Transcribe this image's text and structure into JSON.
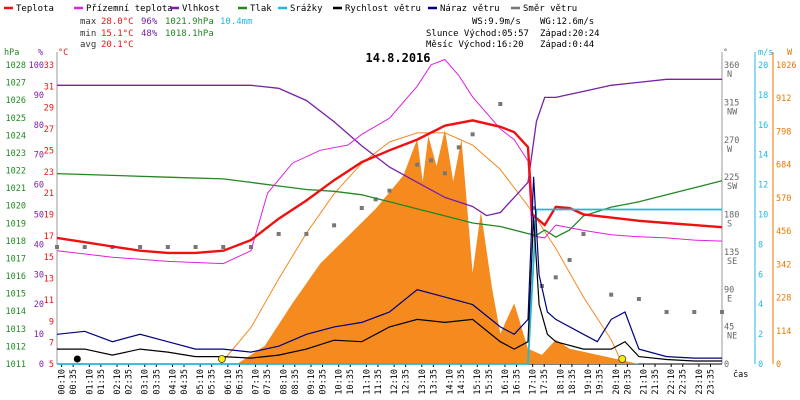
{
  "chart_data": {
    "type": "line",
    "title": "14.8.2016",
    "legend": [
      {
        "label": "Teplota",
        "color": "#ee1111"
      },
      {
        "label": "Přízemní teplota",
        "color": "#dd22dd"
      },
      {
        "label": "Vlhkost",
        "color": "#7a1fa8"
      },
      {
        "label": "Tlak",
        "color": "#228822"
      },
      {
        "label": "Srážky",
        "color": "#22b8dd"
      },
      {
        "label": "Rychlost větru",
        "color": "#000000"
      },
      {
        "label": "Náraz větru",
        "color": "#000080"
      },
      {
        "label": "Směr větru",
        "color": "#777777"
      }
    ],
    "stats": {
      "max": {
        "label": "max",
        "temp": "28.0°C",
        "hum": "96%",
        "press": "1021.9hPa",
        "rain": "10.4mm"
      },
      "min": {
        "label": "min",
        "temp": "15.1°C",
        "hum": "48%",
        "press": "1018.1hPa"
      },
      "avg": {
        "label": "avg",
        "temp": "20.1°C"
      }
    },
    "info": {
      "ws": "WS:9.9m/s",
      "wg": "WG:12.6m/s",
      "sun": "Slunce Východ:05:57",
      "sun_set": "Západ:20:24",
      "moon": "Měsíc Východ:16:20",
      "moon_set": "Západ:0:44"
    },
    "axes": {
      "hpa": {
        "unit": "hPa",
        "ticks": [
          "1028",
          "1027",
          "1026",
          "1025",
          "1024",
          "1023",
          "1022",
          "1021",
          "1020",
          "1019",
          "1018",
          "1017",
          "1016",
          "1015",
          "1014",
          "1013",
          "1012",
          "1011"
        ]
      },
      "pct": {
        "unit": "%",
        "ticks": [
          "100",
          "90",
          "80",
          "70",
          "60",
          "50",
          "40",
          "30",
          "20",
          "10",
          "0"
        ]
      },
      "degc": {
        "unit": "°C",
        "ticks": [
          "33",
          "31",
          "29",
          "27",
          "25",
          "23",
          "21",
          "19",
          "17",
          "15",
          "13",
          "11",
          "9",
          "7",
          "5"
        ]
      },
      "deg": {
        "unit": "°",
        "ticks": [
          "360 N",
          "315 NW",
          "270 W",
          "225 SW",
          "180 S",
          "135 SE",
          "90 E",
          "45 NE",
          "0"
        ]
      },
      "ms": {
        "unit": "m/s",
        "ticks": [
          "20",
          "18",
          "16",
          "14",
          "12",
          "10",
          "8",
          "6",
          "4",
          "2",
          "0"
        ]
      },
      "wm2": {
        "unit": "W",
        "ticks": [
          "1026",
          "912",
          "798",
          "684",
          "570",
          "456",
          "342",
          "228",
          "114",
          "0"
        ]
      },
      "xlabel": "čas",
      "xticks": [
        "00:10",
        "00:35",
        "01:10",
        "01:35",
        "02:10",
        "02:35",
        "03:10",
        "03:35",
        "04:10",
        "04:35",
        "05:10",
        "05:35",
        "06:10",
        "06:35",
        "07:10",
        "07:35",
        "08:10",
        "08:35",
        "09:10",
        "09:35",
        "10:10",
        "10:35",
        "11:10",
        "11:35",
        "12:10",
        "12:35",
        "13:10",
        "13:35",
        "14:10",
        "14:35",
        "15:10",
        "15:35",
        "16:10",
        "16:35",
        "17:10",
        "17:35",
        "18:10",
        "18:35",
        "19:10",
        "19:35",
        "20:10",
        "20:35",
        "21:10",
        "21:35",
        "22:10",
        "22:35",
        "23:10",
        "23:35"
      ]
    },
    "series": {
      "temperature_c": [
        [
          0,
          16.8
        ],
        [
          1,
          16.4
        ],
        [
          2,
          16.0
        ],
        [
          3,
          15.6
        ],
        [
          4,
          15.4
        ],
        [
          5,
          15.4
        ],
        [
          6,
          15.6
        ],
        [
          7,
          16.6
        ],
        [
          7.5,
          17.6
        ],
        [
          8,
          18.6
        ],
        [
          9,
          20.3
        ],
        [
          10,
          22.2
        ],
        [
          11,
          23.9
        ],
        [
          12,
          25.0
        ],
        [
          13,
          26.0
        ],
        [
          14,
          27.3
        ],
        [
          15,
          27.8
        ],
        [
          16,
          27.2
        ],
        [
          16.5,
          26.7
        ],
        [
          17,
          25.3
        ],
        [
          17.15,
          19.0
        ],
        [
          17.6,
          18.0
        ],
        [
          18,
          19.7
        ],
        [
          18.5,
          19.6
        ],
        [
          19,
          19.0
        ],
        [
          20,
          18.7
        ],
        [
          21,
          18.4
        ],
        [
          22,
          18.2
        ],
        [
          23,
          18.0
        ],
        [
          24,
          17.8
        ]
      ],
      "ground_temp_c": [
        [
          0,
          15.6
        ],
        [
          2,
          15.0
        ],
        [
          4,
          14.6
        ],
        [
          6,
          14.4
        ],
        [
          7,
          15.6
        ],
        [
          7.6,
          21.0
        ],
        [
          8.5,
          23.8
        ],
        [
          9.5,
          25.0
        ],
        [
          10.5,
          25.5
        ],
        [
          11,
          26.5
        ],
        [
          12,
          28.0
        ],
        [
          13,
          31.0
        ],
        [
          13.5,
          33.0
        ],
        [
          14,
          33.5
        ],
        [
          14.5,
          32.0
        ],
        [
          15,
          30.0
        ],
        [
          16,
          27.0
        ],
        [
          16.5,
          26.0
        ],
        [
          17,
          24.0
        ],
        [
          17.15,
          17.0
        ],
        [
          17.6,
          16.8
        ],
        [
          18,
          18.0
        ],
        [
          19,
          17.5
        ],
        [
          20,
          17.1
        ],
        [
          21,
          16.9
        ],
        [
          22,
          16.8
        ],
        [
          23,
          16.6
        ],
        [
          24,
          16.5
        ]
      ],
      "humidity_pct": [
        [
          0,
          92
        ],
        [
          4,
          92
        ],
        [
          6,
          92
        ],
        [
          7,
          92
        ],
        [
          8,
          91
        ],
        [
          9,
          87
        ],
        [
          10,
          80
        ],
        [
          11,
          72
        ],
        [
          12,
          65
        ],
        [
          13,
          60
        ],
        [
          14,
          55
        ],
        [
          15,
          52
        ],
        [
          15.5,
          49
        ],
        [
          16,
          50
        ],
        [
          16.5,
          55
        ],
        [
          17,
          60
        ],
        [
          17.3,
          80
        ],
        [
          17.6,
          88
        ],
        [
          18,
          88
        ],
        [
          19,
          90
        ],
        [
          20,
          92
        ],
        [
          22,
          94
        ],
        [
          24,
          94
        ]
      ],
      "pressure_hpa": [
        [
          0,
          1021.8
        ],
        [
          2,
          1021.7
        ],
        [
          4,
          1021.6
        ],
        [
          6,
          1021.5
        ],
        [
          7,
          1021.3
        ],
        [
          8,
          1021.1
        ],
        [
          9,
          1020.9
        ],
        [
          10,
          1020.8
        ],
        [
          11,
          1020.6
        ],
        [
          12,
          1020.2
        ],
        [
          13,
          1019.8
        ],
        [
          14,
          1019.4
        ],
        [
          15,
          1019.0
        ],
        [
          16,
          1018.8
        ],
        [
          17,
          1018.4
        ],
        [
          17.3,
          1018.3
        ],
        [
          17.6,
          1018.6
        ],
        [
          18,
          1018.2
        ],
        [
          18.5,
          1018.6
        ],
        [
          19,
          1019.4
        ],
        [
          20,
          1019.9
        ],
        [
          21,
          1020.2
        ],
        [
          22,
          1020.6
        ],
        [
          23,
          1021.0
        ],
        [
          24,
          1021.4
        ]
      ],
      "rain_mm": [
        [
          0,
          0
        ],
        [
          17.0,
          0
        ],
        [
          17.3,
          10.4
        ],
        [
          24,
          10.4
        ]
      ],
      "wind_ms": [
        [
          0,
          1.0
        ],
        [
          1,
          1.0
        ],
        [
          2,
          0.6
        ],
        [
          3,
          1.0
        ],
        [
          4,
          0.8
        ],
        [
          5,
          0.5
        ],
        [
          6,
          0.5
        ],
        [
          7,
          0.4
        ],
        [
          8,
          0.6
        ],
        [
          9,
          1.0
        ],
        [
          10,
          1.6
        ],
        [
          11,
          1.5
        ],
        [
          12,
          2.5
        ],
        [
          13,
          3.0
        ],
        [
          14,
          2.8
        ],
        [
          15,
          3.0
        ],
        [
          16,
          1.5
        ],
        [
          16.5,
          1.0
        ],
        [
          17,
          1.5
        ],
        [
          17.2,
          9.9
        ],
        [
          17.4,
          4.0
        ],
        [
          17.7,
          2.0
        ],
        [
          18,
          1.5
        ],
        [
          19,
          1.0
        ],
        [
          20,
          1.0
        ],
        [
          20.5,
          1.5
        ],
        [
          21,
          0.5
        ],
        [
          22,
          0.3
        ],
        [
          23,
          0.2
        ],
        [
          24,
          0.2
        ]
      ],
      "gust_ms": [
        [
          0,
          2.0
        ],
        [
          1,
          2.2
        ],
        [
          2,
          1.5
        ],
        [
          3,
          2.0
        ],
        [
          4,
          1.5
        ],
        [
          5,
          1.0
        ],
        [
          6,
          1.0
        ],
        [
          7,
          0.8
        ],
        [
          8,
          1.2
        ],
        [
          9,
          2.0
        ],
        [
          10,
          2.5
        ],
        [
          11,
          2.8
        ],
        [
          12,
          3.5
        ],
        [
          13,
          5.0
        ],
        [
          14,
          4.5
        ],
        [
          15,
          4.0
        ],
        [
          16,
          2.5
        ],
        [
          16.5,
          2.0
        ],
        [
          17,
          3.0
        ],
        [
          17.2,
          12.6
        ],
        [
          17.4,
          6.0
        ],
        [
          17.7,
          3.5
        ],
        [
          18,
          3.0
        ],
        [
          19,
          2.0
        ],
        [
          19.5,
          1.5
        ],
        [
          20,
          3.0
        ],
        [
          20.5,
          3.5
        ],
        [
          21,
          1.0
        ],
        [
          22,
          0.5
        ],
        [
          23,
          0.4
        ],
        [
          24,
          0.4
        ]
      ],
      "wind_dir_deg": [
        [
          0,
          135
        ],
        [
          1,
          135
        ],
        [
          2,
          135
        ],
        [
          3,
          135
        ],
        [
          4,
          135
        ],
        [
          5,
          135
        ],
        [
          6,
          135
        ],
        [
          7,
          135
        ],
        [
          8,
          150
        ],
        [
          9,
          150
        ],
        [
          10,
          160
        ],
        [
          11,
          180
        ],
        [
          11.5,
          190
        ],
        [
          12,
          200
        ],
        [
          13,
          230
        ],
        [
          13.5,
          235
        ],
        [
          14,
          220
        ],
        [
          14.5,
          250
        ],
        [
          15,
          265
        ],
        [
          16,
          300
        ],
        [
          17.2,
          180
        ],
        [
          17.5,
          90
        ],
        [
          18,
          100
        ],
        [
          18.5,
          120
        ],
        [
          19,
          150
        ],
        [
          20,
          80
        ],
        [
          21,
          75
        ],
        [
          22,
          60
        ],
        [
          23,
          60
        ],
        [
          24,
          60
        ]
      ],
      "solar_wm2": [
        [
          0,
          0
        ],
        [
          6.5,
          0
        ],
        [
          7.5,
          60
        ],
        [
          8.5,
          200
        ],
        [
          9.5,
          330
        ],
        [
          10.5,
          420
        ],
        [
          11.5,
          510
        ],
        [
          12.5,
          620
        ],
        [
          13,
          740
        ],
        [
          13.2,
          600
        ],
        [
          13.4,
          750
        ],
        [
          13.7,
          650
        ],
        [
          14,
          770
        ],
        [
          14.3,
          600
        ],
        [
          14.6,
          740
        ],
        [
          15,
          300
        ],
        [
          15.3,
          500
        ],
        [
          15.7,
          250
        ],
        [
          16,
          100
        ],
        [
          16.5,
          200
        ],
        [
          17,
          50
        ],
        [
          17.5,
          30
        ],
        [
          18,
          80
        ],
        [
          18.5,
          50
        ],
        [
          19,
          40
        ],
        [
          20,
          20
        ],
        [
          21,
          0
        ],
        [
          24,
          0
        ]
      ],
      "clear_sky_wm2": [
        [
          5.9,
          0
        ],
        [
          7,
          120
        ],
        [
          8,
          280
        ],
        [
          9,
          430
        ],
        [
          10,
          560
        ],
        [
          11,
          660
        ],
        [
          12,
          730
        ],
        [
          13,
          760
        ],
        [
          14,
          760
        ],
        [
          15,
          720
        ],
        [
          16,
          640
        ],
        [
          17,
          520
        ],
        [
          18,
          380
        ],
        [
          19,
          220
        ],
        [
          20,
          80
        ],
        [
          20.4,
          0
        ]
      ]
    },
    "sun_markers": [
      "05:57",
      "20:24"
    ],
    "moon_marker": "0:44"
  }
}
